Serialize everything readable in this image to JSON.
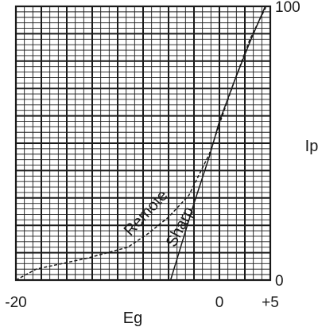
{
  "chart_data": {
    "type": "line",
    "xlabel": "Eg",
    "ylabel": "Ip",
    "xlim": [
      -20,
      5
    ],
    "ylim": [
      0,
      100
    ],
    "x_tick_labels": [
      {
        "value": -20,
        "label": "-20"
      },
      {
        "value": 0,
        "label": "0"
      },
      {
        "value": 5,
        "label": "+5"
      }
    ],
    "y_tick_labels": [
      {
        "value": 0,
        "label": "0"
      },
      {
        "value": 100,
        "label": "100"
      }
    ],
    "grid": true,
    "series": [
      {
        "name": "Sharp",
        "style": "solid",
        "points": [
          [
            -4.8,
            0
          ],
          [
            -2.5,
            28
          ],
          [
            -1.0,
            45
          ],
          [
            0,
            58
          ],
          [
            1.5,
            73
          ],
          [
            3.0,
            87
          ],
          [
            4.5,
            100
          ]
        ]
      },
      {
        "name": "Remote",
        "style": "dashed",
        "points": [
          [
            -20,
            0
          ],
          [
            -18,
            4
          ],
          [
            -13,
            8
          ],
          [
            -9,
            12
          ],
          [
            -7,
            17
          ],
          [
            -5,
            23
          ],
          [
            -3,
            31
          ],
          [
            -1,
            46
          ],
          [
            0,
            57
          ],
          [
            1.5,
            73
          ],
          [
            3.0,
            88
          ],
          [
            4.6,
            100
          ]
        ]
      }
    ],
    "colors": {
      "line": "#1a1a1a",
      "grid": "#1a1a1a",
      "background": "#ffffff"
    }
  }
}
